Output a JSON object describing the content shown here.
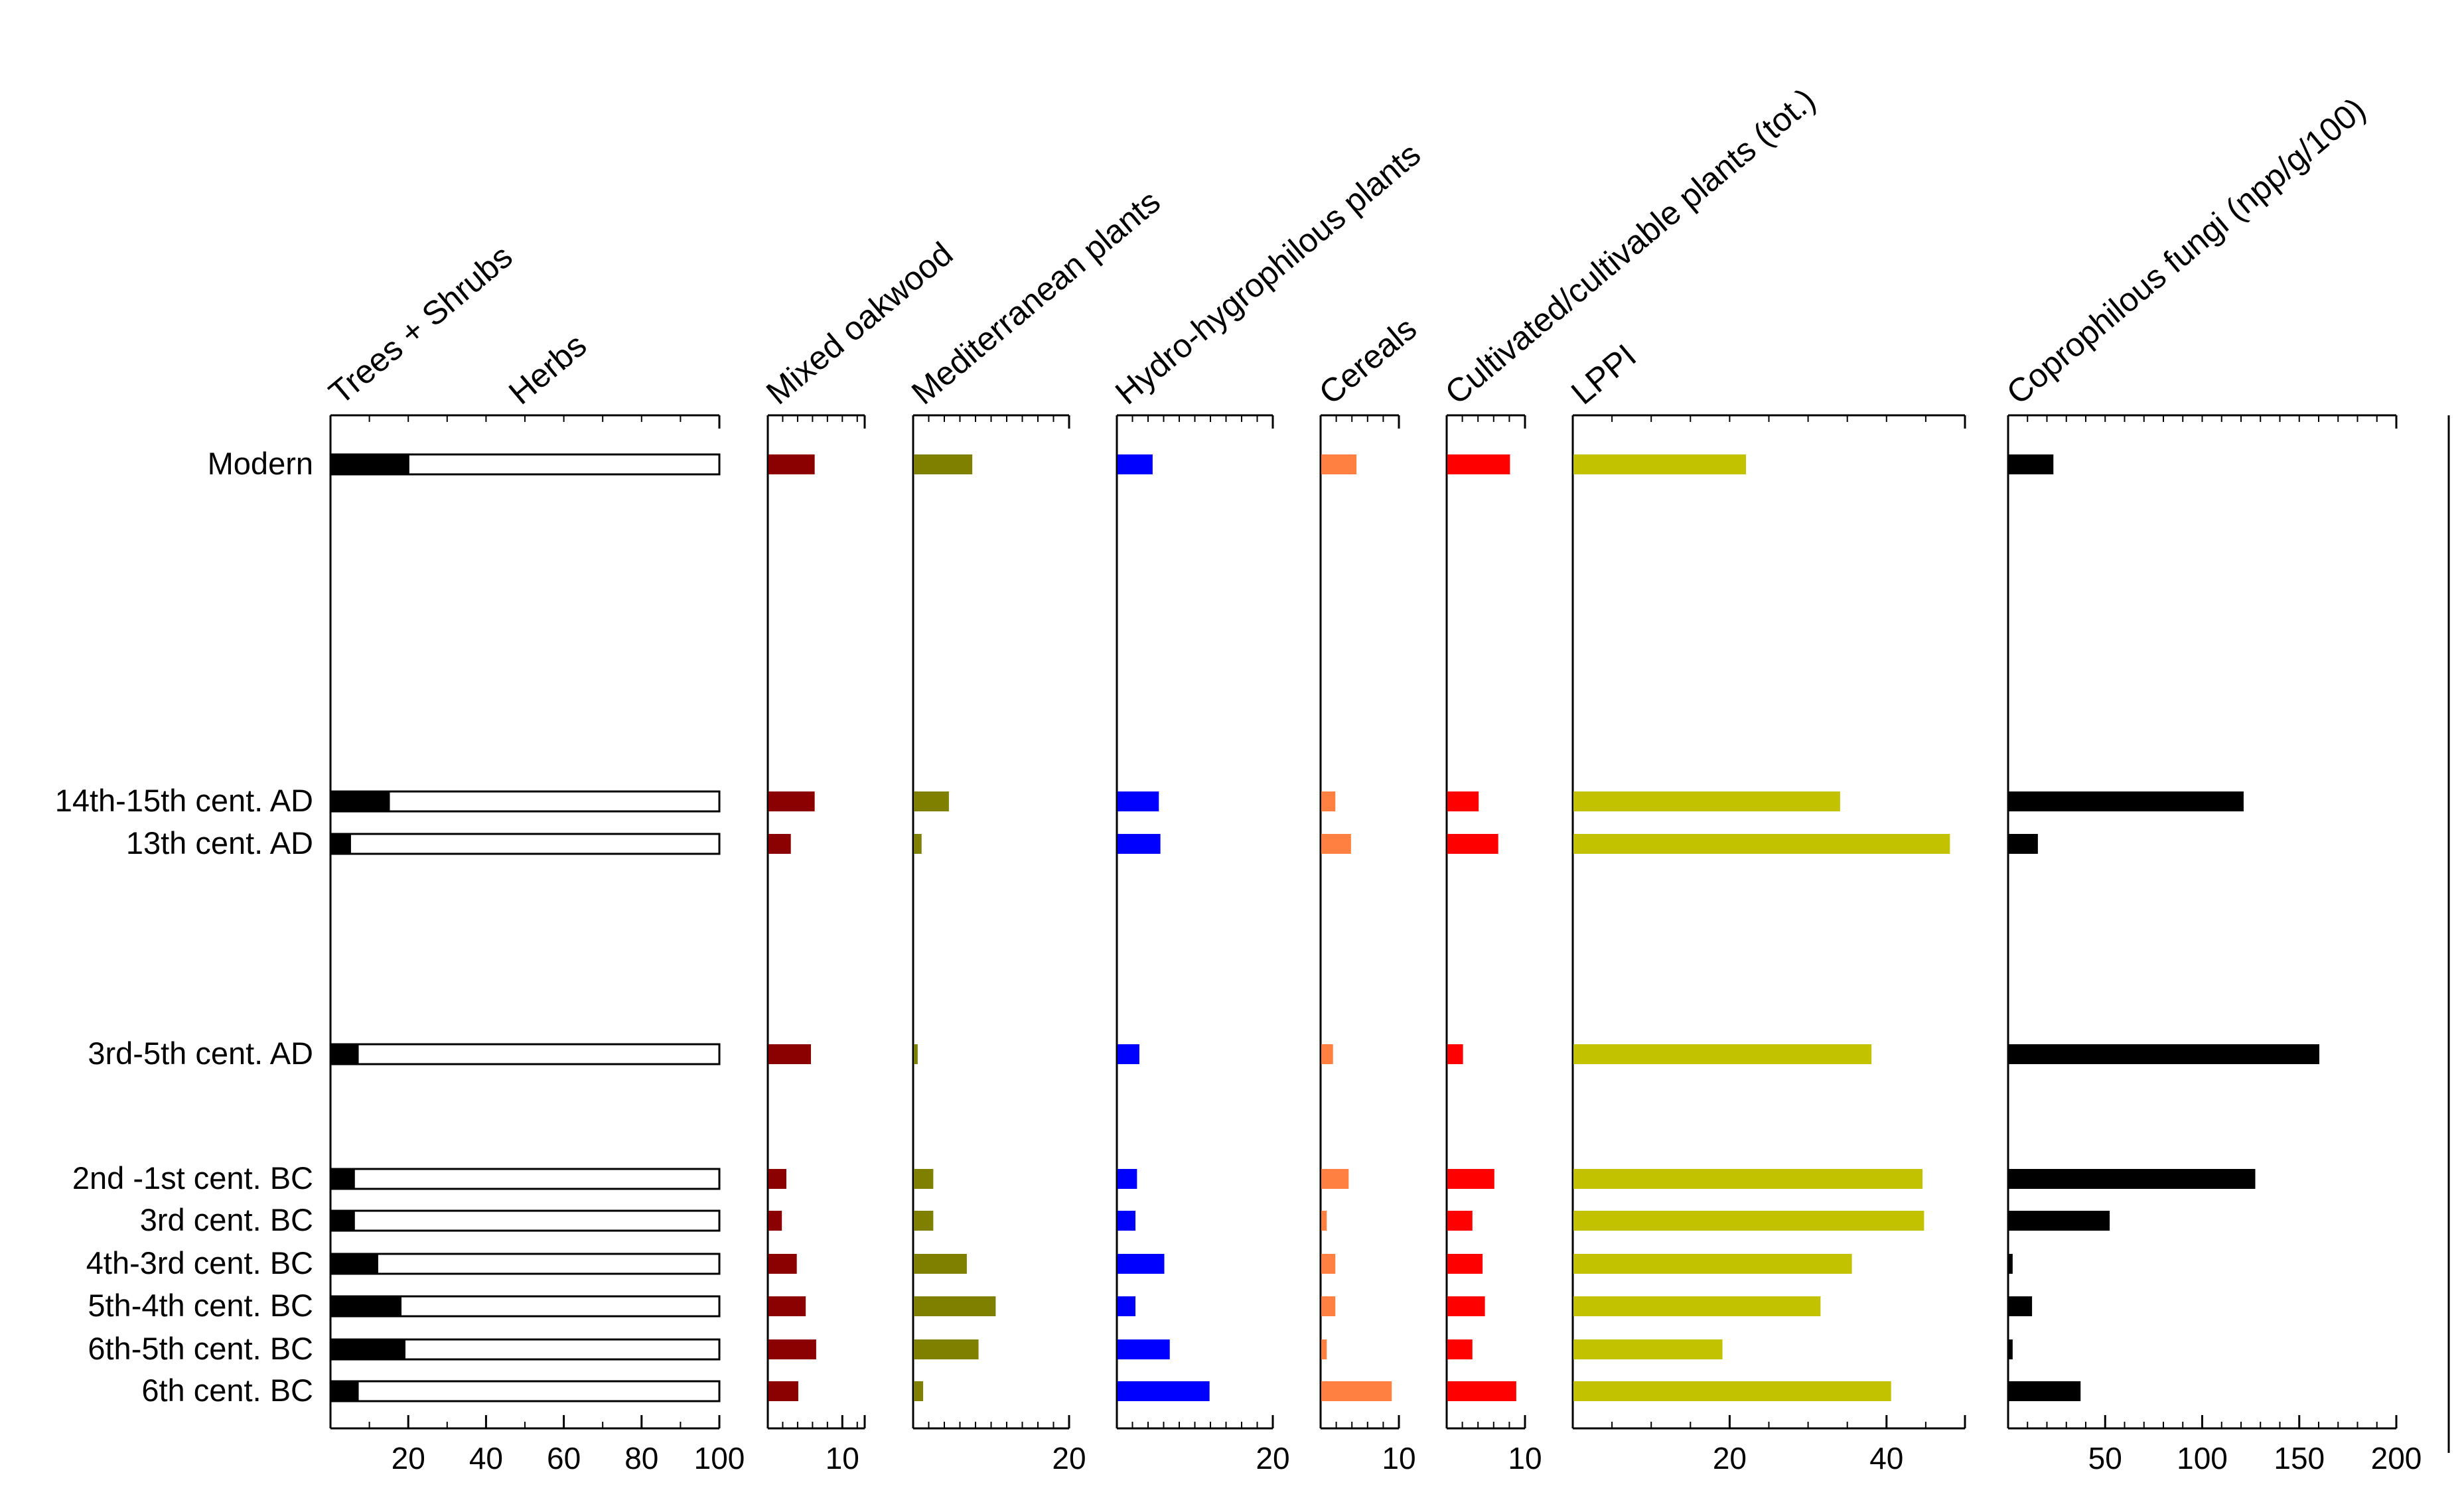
{
  "chart_data": {
    "type": "bar",
    "orientation": "horizontal",
    "categories": [
      "Modern",
      "14th-15th cent. AD",
      "13th cent. AD",
      "3rd-5th cent. AD",
      "2nd -1st cent. BC",
      "3rd cent. BC",
      "4th-3rd cent. BC",
      "5th-4th cent. BC",
      "6th-5th cent. BC",
      "6th cent. BC"
    ],
    "panels": [
      {
        "type": "stacked",
        "title_primary": "Trees + Shrubs",
        "title_secondary": "Herbs",
        "xlim": [
          0,
          100
        ],
        "ticks": [
          20,
          40,
          60,
          80,
          100
        ],
        "series": [
          {
            "name": "Trees + Shrubs",
            "color": "#000000",
            "values": [
              20,
              15,
              5,
              7,
              6,
              6,
              12,
              18,
              19,
              7
            ]
          },
          {
            "name": "Herbs",
            "color": "#ffffff",
            "values": [
              80,
              85,
              95,
              93,
              94,
              94,
              88,
              82,
              81,
              93
            ]
          }
        ]
      },
      {
        "title": "Mixed oakwood",
        "color": "#8b0000",
        "xlim": [
          0,
          13
        ],
        "ticks": [
          10
        ],
        "values": [
          6.2,
          6.2,
          3.0,
          5.7,
          2.4,
          1.8,
          3.8,
          5.0,
          6.4,
          4.0
        ]
      },
      {
        "title": "Mediterranean plants",
        "color": "#7f7f00",
        "xlim": [
          0,
          20
        ],
        "ticks": [
          20
        ],
        "values": [
          7.5,
          4.5,
          1.0,
          0.5,
          2.5,
          2.5,
          6.8,
          10.5,
          8.3,
          1.2
        ]
      },
      {
        "title": "Hydro-hygrophilous plants",
        "color": "#0000ff",
        "xlim": [
          0,
          20
        ],
        "ticks": [
          20
        ],
        "values": [
          4.5,
          5.3,
          5.5,
          2.8,
          2.5,
          2.3,
          6.0,
          2.3,
          6.7,
          11.8
        ]
      },
      {
        "title": "Cereals",
        "color": "#ff8040",
        "xlim": [
          0,
          10
        ],
        "ticks": [
          10
        ],
        "values": [
          4.5,
          1.8,
          3.8,
          1.5,
          3.5,
          0.7,
          1.8,
          1.8,
          0.7,
          9.0
        ]
      },
      {
        "title": "Cultivated/cultivable plants (tot.)",
        "color": "#ff0000",
        "xlim": [
          0,
          10
        ],
        "ticks": [
          10
        ],
        "values": [
          8.0,
          4.0,
          6.5,
          2.0,
          6.0,
          3.2,
          4.5,
          4.8,
          3.2,
          8.8
        ]
      },
      {
        "title": "LPPI",
        "color": "#c2c200",
        "xlim": [
          0,
          50
        ],
        "ticks": [
          20,
          40
        ],
        "values": [
          22,
          34,
          48,
          38,
          44.5,
          44.7,
          35.5,
          31.5,
          19,
          40.5
        ]
      },
      {
        "title": "Coprophilous fungi (npp/g/100)",
        "color": "#000000",
        "xlim": [
          0,
          200
        ],
        "ticks": [
          50,
          100,
          150,
          200
        ],
        "values": [
          23,
          121,
          15,
          160,
          127,
          52,
          2,
          12,
          2,
          37
        ]
      }
    ]
  }
}
